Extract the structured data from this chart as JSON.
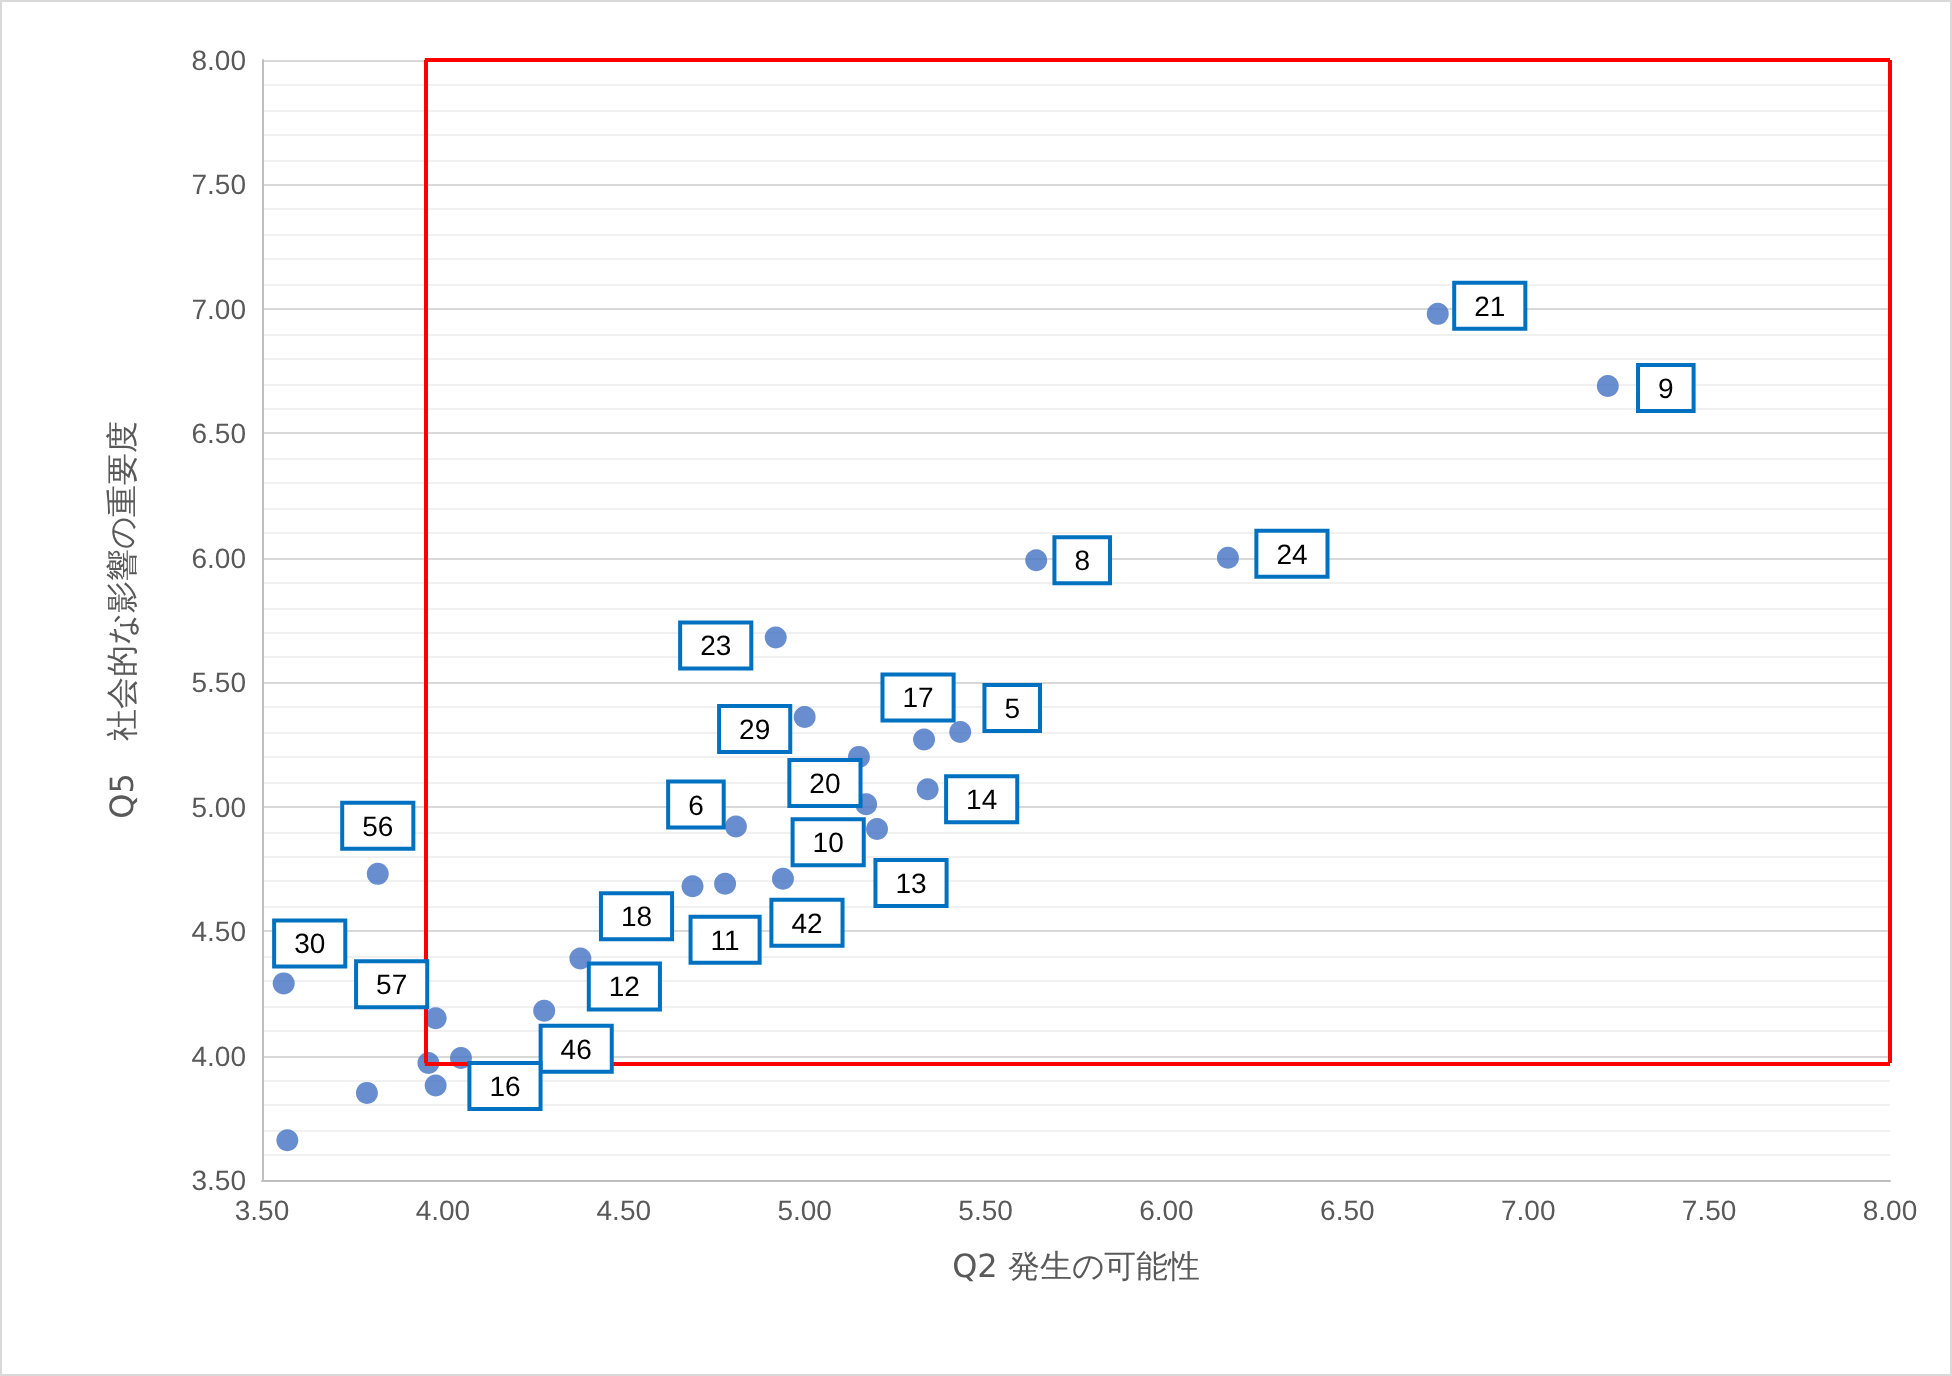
{
  "chart_data": {
    "type": "scatter",
    "xlabel": "Q2 発生の可能性",
    "ylabel": "Q5　社会的な影響の重要度",
    "x": [
      6.75,
      7.22,
      5.64,
      6.17,
      4.92,
      5.0,
      5.33,
      5.43,
      5.15,
      5.17,
      5.2,
      5.34,
      4.81,
      4.69,
      4.78,
      4.94,
      4.38,
      4.28,
      3.82,
      3.56,
      3.98,
      3.96,
      4.05,
      3.98,
      3.79,
      3.57
    ],
    "series": [
      {
        "color": "#4472c4",
        "values": [
          6.98,
          6.69,
          5.99,
          6.0,
          5.68,
          5.36,
          5.27,
          5.3,
          5.2,
          5.01,
          4.91,
          5.07,
          4.92,
          4.68,
          4.69,
          4.71,
          4.39,
          4.18,
          4.73,
          4.29,
          4.15,
          3.97,
          3.99,
          3.88,
          3.85,
          3.66
        ]
      }
    ],
    "annotations": [
      {
        "text": "21",
        "x": 6.75,
        "y": 6.98
      },
      {
        "text": "9",
        "x": 7.22,
        "y": 6.69
      },
      {
        "text": "8",
        "x": 5.64,
        "y": 5.99
      },
      {
        "text": "24",
        "x": 6.17,
        "y": 6.0
      },
      {
        "text": "23",
        "x": 4.92,
        "y": 5.68
      },
      {
        "text": "29",
        "x": 5.0,
        "y": 5.36
      },
      {
        "text": "17",
        "x": 5.33,
        "y": 5.27
      },
      {
        "text": "5",
        "x": 5.43,
        "y": 5.3
      },
      {
        "text": "20",
        "x": 5.15,
        "y": 5.2
      },
      {
        "text": "10",
        "x": 5.17,
        "y": 5.01
      },
      {
        "text": "13",
        "x": 5.2,
        "y": 4.91
      },
      {
        "text": "14",
        "x": 5.34,
        "y": 5.07
      },
      {
        "text": "6",
        "x": 4.81,
        "y": 4.92
      },
      {
        "text": "18",
        "x": 4.69,
        "y": 4.68
      },
      {
        "text": "11",
        "x": 4.78,
        "y": 4.69
      },
      {
        "text": "42",
        "x": 4.94,
        "y": 4.71
      },
      {
        "text": "12",
        "x": 4.38,
        "y": 4.39
      },
      {
        "text": "46",
        "x": 4.28,
        "y": 4.18
      },
      {
        "text": "56",
        "x": 3.82,
        "y": 4.73
      },
      {
        "text": "30",
        "x": 3.56,
        "y": 4.29
      },
      {
        "text": "57",
        "x": 3.98,
        "y": 4.15
      },
      {
        "text": "16",
        "x": 4.05,
        "y": 3.99
      }
    ],
    "xlim": [
      3.5,
      8
    ],
    "ylim": [
      3.5,
      8
    ],
    "xticks": [
      {
        "value": 3.5,
        "label": "3.50"
      },
      {
        "value": 4,
        "label": "4.00"
      },
      {
        "value": 4.5,
        "label": "4.50"
      },
      {
        "value": 5,
        "label": "5.00"
      },
      {
        "value": 5.5,
        "label": "5.50"
      },
      {
        "value": 6,
        "label": "6.00"
      },
      {
        "value": 6.5,
        "label": "6.50"
      },
      {
        "value": 7,
        "label": "7.00"
      },
      {
        "value": 7.5,
        "label": "7.50"
      },
      {
        "value": 8,
        "label": "8.00"
      }
    ],
    "yticks": [
      {
        "value": 3.5,
        "label": "3.50"
      },
      {
        "value": 4,
        "label": "4.00"
      },
      {
        "value": 4.5,
        "label": "4.50"
      },
      {
        "value": 5,
        "label": "5.00"
      },
      {
        "value": 5.5,
        "label": "5.50"
      },
      {
        "value": 6,
        "label": "6.00"
      },
      {
        "value": 6.5,
        "label": "6.50"
      },
      {
        "value": 7,
        "label": "7.00"
      },
      {
        "value": 7.5,
        "label": "7.50"
      },
      {
        "value": 8,
        "label": "8.00"
      }
    ],
    "ref_lines": [
      {
        "axis": "x",
        "value": 3.95,
        "color": "#ff0000"
      },
      {
        "axis": "y",
        "value": 3.97,
        "color": "#ff0000"
      }
    ],
    "grid": "y",
    "marker": "circle"
  }
}
